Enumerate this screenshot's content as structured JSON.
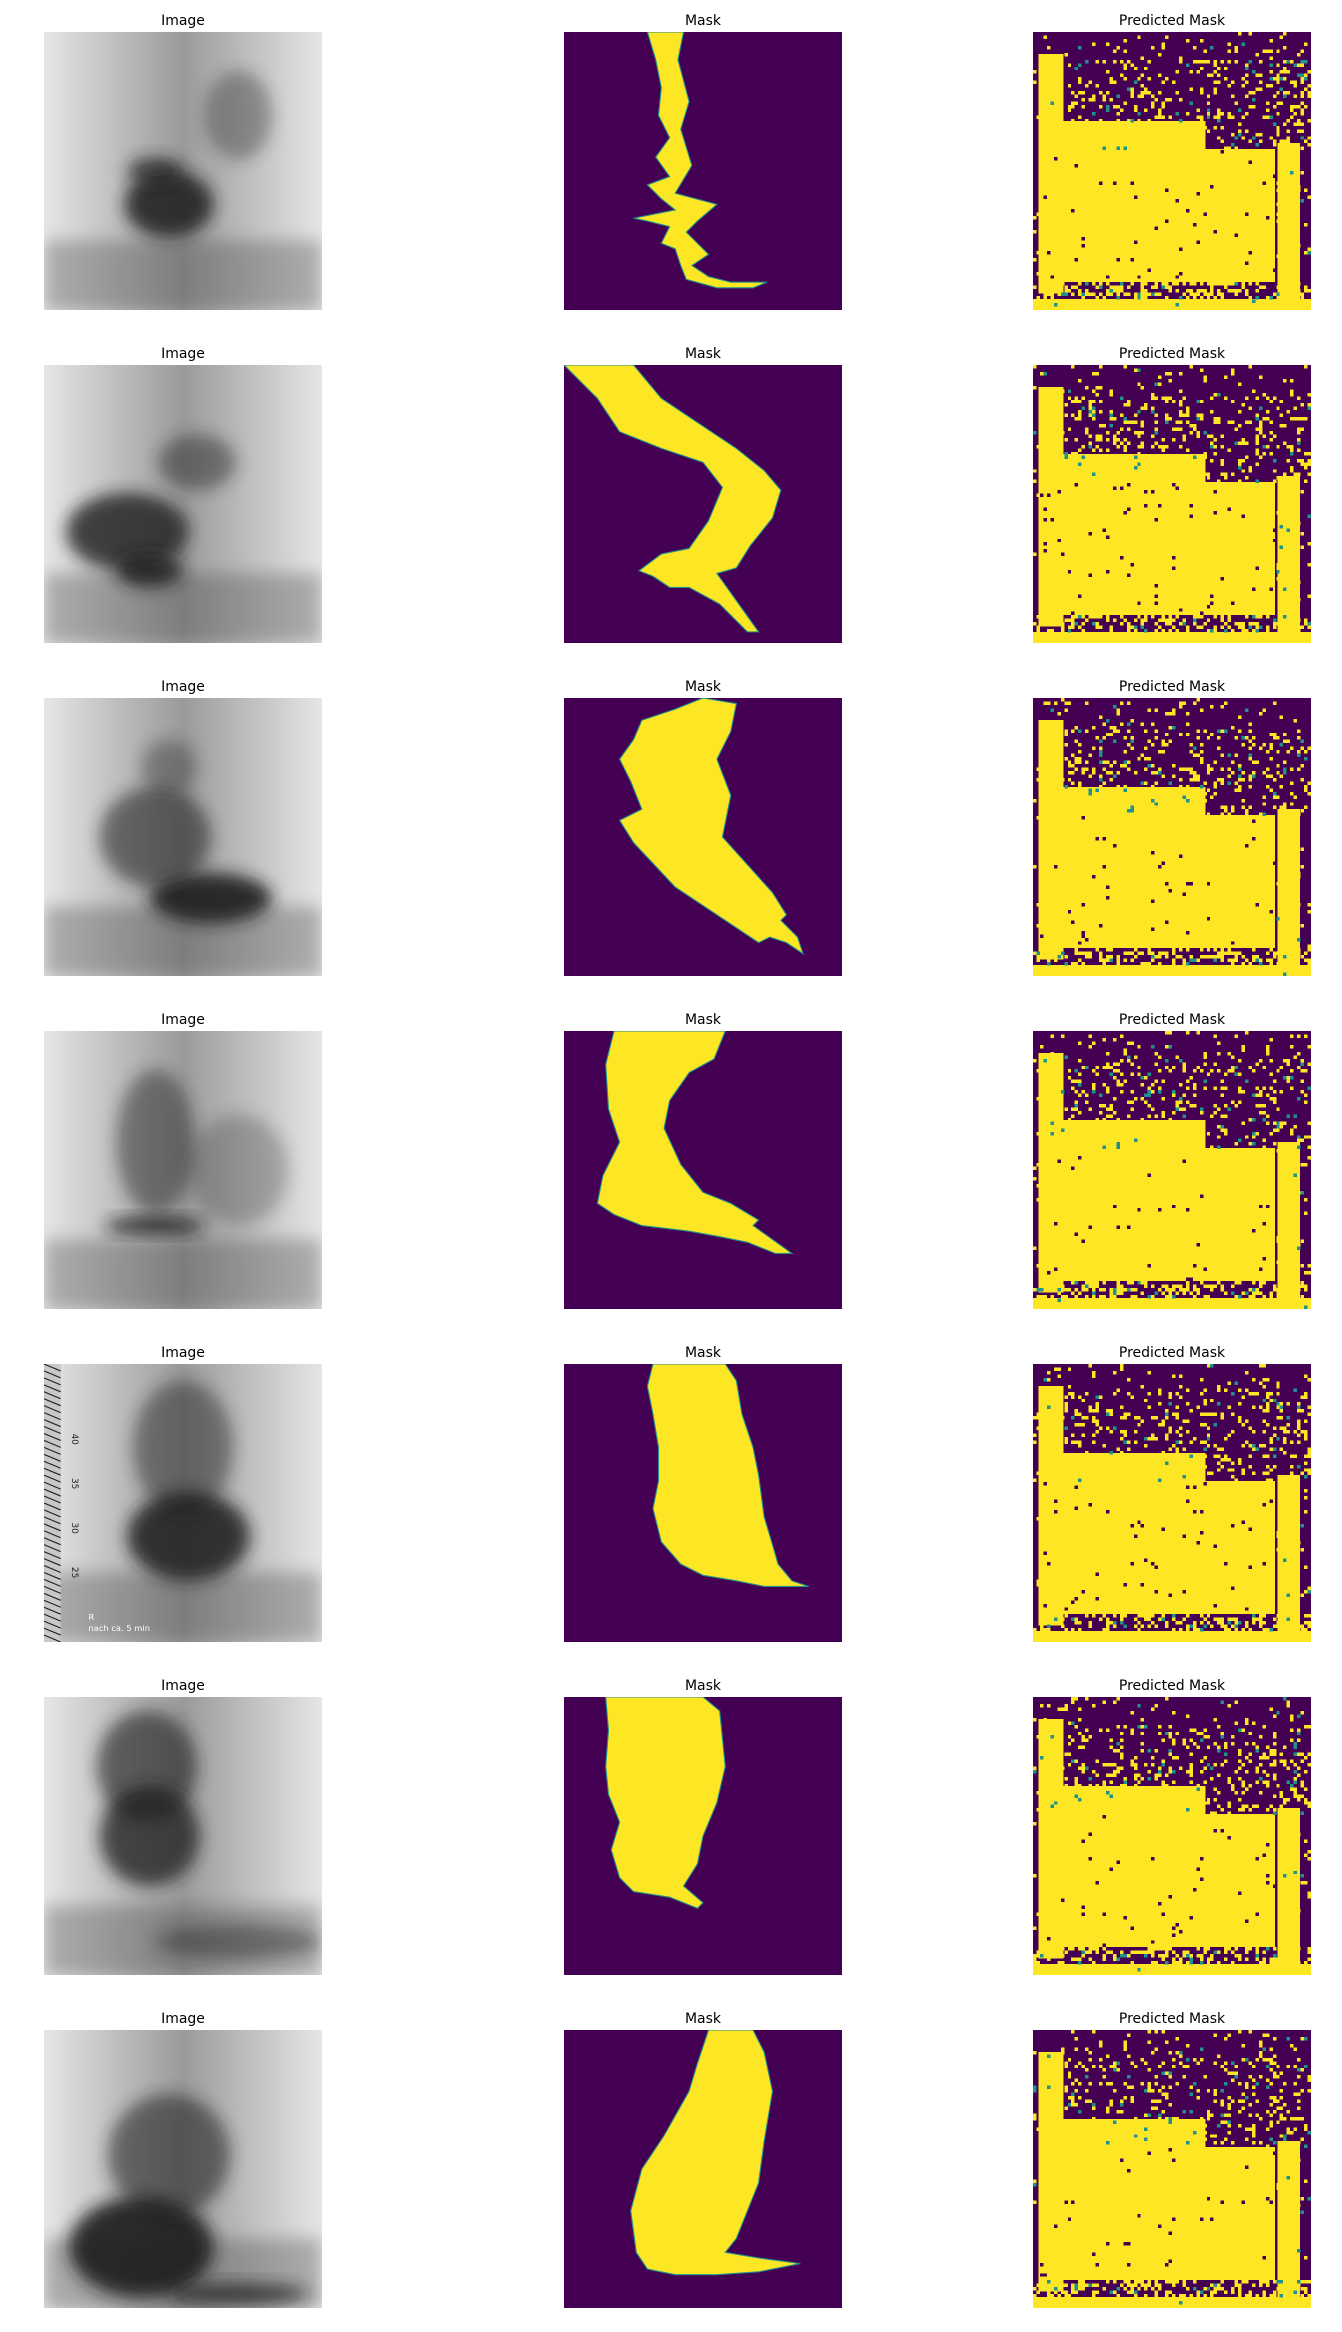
{
  "colors": {
    "mask_background": "#440154",
    "mask_foreground": "#fde725",
    "mask_edge": "#21918c",
    "xray_dark": "#1a1a1a",
    "xray_light": "#e6e6e6"
  },
  "columns": [
    "Image",
    "Mask",
    "Predicted Mask"
  ],
  "rows": [
    {
      "image_title": "Image",
      "mask_title": "Mask",
      "pred_title": "Predicted Mask",
      "image_annotation": ""
    },
    {
      "image_title": "Image",
      "mask_title": "Mask",
      "pred_title": "Predicted Mask",
      "image_annotation": ""
    },
    {
      "image_title": "Image",
      "mask_title": "Mask",
      "pred_title": "Predicted Mask",
      "image_annotation": ""
    },
    {
      "image_title": "Image",
      "mask_title": "Mask",
      "pred_title": "Predicted Mask",
      "image_annotation": ""
    },
    {
      "image_title": "Image",
      "mask_title": "Mask",
      "pred_title": "Predicted Mask",
      "image_annotation": "nach ca. 5 min"
    },
    {
      "image_title": "Image",
      "mask_title": "Mask",
      "pred_title": "Predicted Mask",
      "image_annotation": ""
    },
    {
      "image_title": "Image",
      "mask_title": "Mask",
      "pred_title": "Predicted Mask",
      "image_annotation": ""
    }
  ],
  "ruler_labels": [
    "40",
    "35",
    "30",
    "25"
  ],
  "ruler_marker": "R"
}
